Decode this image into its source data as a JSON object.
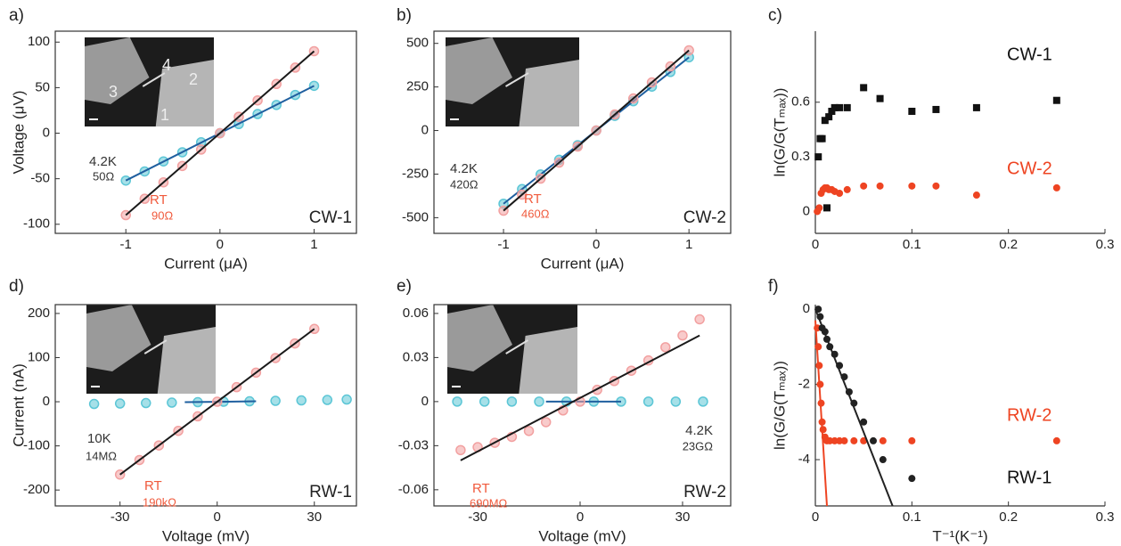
{
  "chart_data": [
    {
      "type": "scatter",
      "panel": "a)",
      "sample": "CW-1",
      "xlabel": "Current (μA)",
      "ylabel": "Voltage (μV)",
      "xlim": [
        -1.75,
        1.45
      ],
      "ylim": [
        -110,
        112
      ],
      "xticks": [
        -1,
        0,
        1
      ],
      "yticks": [
        -100,
        -50,
        0,
        50,
        100
      ],
      "inset_labels": [
        "4",
        "2",
        "3",
        "1"
      ],
      "series": [
        {
          "name": "4.2K",
          "note": "50Ω",
          "marker": "circle",
          "color": "#5cc6d6",
          "label_color": "#333333",
          "fit_color": "#1f5f9f",
          "x": [
            -1,
            -0.8,
            -0.6,
            -0.4,
            -0.2,
            0,
            0.2,
            0.4,
            0.6,
            0.8,
            1
          ],
          "values": [
            -52,
            -42,
            -31,
            -21,
            -10,
            0,
            10,
            21,
            31,
            42,
            52
          ],
          "fit": {
            "x": [
              -1,
              1
            ],
            "values": [
              -52,
              52
            ]
          }
        },
        {
          "name": "RT",
          "note": "90Ω",
          "marker": "circle",
          "color": "#f2a0a0",
          "label_color": "#f05a3c",
          "fit_color": "#1a1a1a",
          "x": [
            -1,
            -0.8,
            -0.6,
            -0.4,
            -0.2,
            0,
            0.2,
            0.4,
            0.6,
            0.8,
            1
          ],
          "values": [
            -90,
            -72,
            -54,
            -36,
            -18,
            0,
            18,
            36,
            54,
            72,
            90
          ],
          "fit": {
            "x": [
              -1,
              1
            ],
            "values": [
              -90,
              90
            ]
          }
        }
      ]
    },
    {
      "type": "scatter",
      "panel": "b)",
      "sample": "CW-2",
      "xlabel": "Current (μA)",
      "xlim": [
        -1.75,
        1.45
      ],
      "ylim": [
        -590,
        570
      ],
      "xticks": [
        -1,
        0,
        1
      ],
      "yticks": [
        -500,
        -250,
        0,
        250,
        500
      ],
      "series": [
        {
          "name": "4.2K",
          "note": "420Ω",
          "marker": "circle",
          "color": "#5cc6d6",
          "label_color": "#333333",
          "fit_color": "#1f5f9f",
          "x": [
            -1,
            -0.8,
            -0.6,
            -0.4,
            -0.2,
            0,
            0.2,
            0.4,
            0.6,
            0.8,
            1
          ],
          "values": [
            -420,
            -336,
            -252,
            -168,
            -84,
            0,
            84,
            168,
            252,
            336,
            420
          ],
          "fit": {
            "x": [
              -1,
              1
            ],
            "values": [
              -420,
              420
            ]
          }
        },
        {
          "name": "RT",
          "note": "460Ω",
          "marker": "circle",
          "color": "#f2a0a0",
          "label_color": "#f05a3c",
          "fit_color": "#1a1a1a",
          "x": [
            -1,
            -0.8,
            -0.6,
            -0.4,
            -0.2,
            0,
            0.2,
            0.4,
            0.6,
            0.8,
            1
          ],
          "values": [
            -460,
            -368,
            -276,
            -184,
            -92,
            0,
            92,
            184,
            276,
            368,
            460
          ],
          "fit": {
            "x": [
              -1,
              1
            ],
            "values": [
              -460,
              460
            ]
          }
        }
      ]
    },
    {
      "type": "scatter",
      "panel": "c)",
      "ylabel": "ln(G/G(Tₘₐₓ))",
      "xlim": [
        0,
        0.3
      ],
      "ylim": [
        -0.12,
        0.99
      ],
      "xticks": [
        0,
        0.1,
        0.2,
        0.3
      ],
      "yticks": [
        0,
        0.3,
        0.6
      ],
      "series": [
        {
          "name": "CW-1",
          "marker": "square",
          "color": "#111111",
          "label_color": "#111111",
          "x": [
            0.003,
            0.005,
            0.007,
            0.01,
            0.012,
            0.014,
            0.017,
            0.02,
            0.025,
            0.033,
            0.05,
            0.067,
            0.1,
            0.125,
            0.167,
            0.25
          ],
          "values": [
            0.3,
            0.4,
            0.4,
            0.5,
            0.02,
            0.52,
            0.55,
            0.57,
            0.57,
            0.57,
            0.68,
            0.62,
            0.55,
            0.56,
            0.57,
            0.61
          ]
        },
        {
          "name": "CW-2",
          "marker": "circle",
          "color": "#ee4422",
          "label_color": "#ee4422",
          "x": [
            0.002,
            0.004,
            0.006,
            0.008,
            0.01,
            0.012,
            0.014,
            0.017,
            0.02,
            0.025,
            0.033,
            0.05,
            0.067,
            0.1,
            0.125,
            0.167,
            0.25
          ],
          "values": [
            0,
            0.02,
            0.1,
            0.12,
            0.13,
            0.13,
            0.12,
            0.12,
            0.11,
            0.1,
            0.12,
            0.14,
            0.14,
            0.14,
            0.14,
            0.09,
            0.13
          ]
        }
      ]
    },
    {
      "type": "scatter",
      "panel": "d)",
      "sample": "RW-1",
      "xlabel": "Voltage (mV)",
      "ylabel": "Current (nA)",
      "xlim": [
        -50,
        43
      ],
      "ylim": [
        -236,
        220
      ],
      "xticks": [
        -30,
        0,
        30
      ],
      "yticks": [
        -200,
        -100,
        0,
        100,
        200
      ],
      "series": [
        {
          "name": "10K",
          "note": "14MΩ",
          "marker": "circle",
          "color": "#5cc6d6",
          "label_color": "#333333",
          "fit_color": "#1f5f9f",
          "x": [
            -38,
            -30,
            -22,
            -14,
            -6,
            2,
            10,
            18,
            26,
            34,
            40
          ],
          "values": [
            -5,
            -4,
            -3,
            -2,
            -1,
            0,
            1,
            2,
            3,
            4,
            5
          ],
          "fit": {
            "x": [
              -10,
              12
            ],
            "values": [
              -1,
              1
            ]
          }
        },
        {
          "name": "RT",
          "note": "190kΩ",
          "marker": "circle",
          "color": "#f2a0a0",
          "label_color": "#f05a3c",
          "fit_color": "#1a1a1a",
          "x": [
            -30,
            -24,
            -18,
            -12,
            -6,
            0,
            6,
            12,
            18,
            24,
            30
          ],
          "values": [
            -165,
            -132,
            -99,
            -66,
            -33,
            0,
            33,
            66,
            99,
            132,
            165
          ],
          "fit": {
            "x": [
              -30,
              30
            ],
            "values": [
              -165,
              165
            ]
          }
        }
      ]
    },
    {
      "type": "scatter",
      "panel": "e)",
      "sample": "RW-2",
      "xlabel": "Voltage (mV)",
      "xlim": [
        -42.8,
        44.1
      ],
      "ylim": [
        -0.071,
        0.066
      ],
      "xticks": [
        -30,
        0,
        30
      ],
      "yticks": [
        -0.06,
        -0.03,
        0,
        0.03,
        0.06
      ],
      "series": [
        {
          "name": "4.2K",
          "note": "23GΩ",
          "marker": "circle",
          "color": "#5cc6d6",
          "label_color": "#333333",
          "fit_color": "#1f5f9f",
          "x": [
            -36,
            -28,
            -20,
            -12,
            -4,
            4,
            12,
            20,
            28,
            36
          ],
          "values": [
            0,
            0,
            0,
            0,
            0,
            0,
            0,
            0,
            0,
            0
          ],
          "fit": {
            "x": [
              -10,
              12
            ],
            "values": [
              0,
              0
            ]
          }
        },
        {
          "name": "RT",
          "note": "690MΩ",
          "marker": "circle",
          "color": "#f2a0a0",
          "label_color": "#f05a3c",
          "fit_color": "#1a1a1a",
          "x": [
            -35,
            -30,
            -25,
            -20,
            -15,
            -10,
            -5,
            0,
            5,
            10,
            15,
            20,
            25,
            30,
            35
          ],
          "values": [
            -0.033,
            -0.031,
            -0.028,
            -0.024,
            -0.02,
            -0.014,
            -0.006,
            0,
            0.008,
            0.014,
            0.021,
            0.028,
            0.037,
            0.045,
            0.056
          ],
          "fit": {
            "x": [
              -35,
              35
            ],
            "values": [
              -0.04,
              0.045
            ]
          }
        }
      ]
    },
    {
      "type": "scatter",
      "panel": "f)",
      "xlabel": "T⁻¹(K⁻¹)",
      "ylabel": "ln(G/G(Tₘₐₓ))",
      "xlim": [
        0,
        0.3
      ],
      "ylim": [
        -5.23,
        0.12
      ],
      "xticks": [
        0,
        0.1,
        0.2,
        0.3
      ],
      "yticks": [
        0,
        -2,
        -4
      ],
      "series": [
        {
          "name": "RW-2",
          "marker": "circle",
          "color": "#ee4422",
          "label_color": "#ee4422",
          "fit_color": "#ee4422",
          "x": [
            0.002,
            0.003,
            0.004,
            0.005,
            0.006,
            0.007,
            0.008,
            0.01,
            0.012,
            0.015,
            0.02,
            0.025,
            0.03,
            0.04,
            0.05,
            0.07,
            0.1,
            0.25
          ],
          "values": [
            -0.5,
            -1,
            -1.5,
            -2,
            -2.5,
            -3,
            -3.2,
            -3.4,
            -3.5,
            -3.5,
            -3.5,
            -3.5,
            -3.5,
            -3.5,
            -3.5,
            -3.5,
            -3.5,
            -3.5
          ],
          "fit": {
            "x": [
              0,
              0.012
            ],
            "values": [
              -0.3,
              -5.23
            ]
          }
        },
        {
          "name": "RW-1",
          "marker": "circle",
          "color": "#222222",
          "label_color": "#111111",
          "fit_color": "#222222",
          "x": [
            0.003,
            0.005,
            0.007,
            0.01,
            0.012,
            0.015,
            0.02,
            0.025,
            0.03,
            0.035,
            0.04,
            0.05,
            0.06,
            0.07,
            0.1
          ],
          "values": [
            0,
            -0.2,
            -0.5,
            -0.6,
            -0.8,
            -1,
            -1.2,
            -1.5,
            -1.8,
            -2.2,
            -2.5,
            -3,
            -3.5,
            -4,
            -4.5
          ],
          "fit": {
            "x": [
              0,
              0.08
            ],
            "values": [
              0,
              -5.23
            ]
          }
        }
      ]
    }
  ]
}
